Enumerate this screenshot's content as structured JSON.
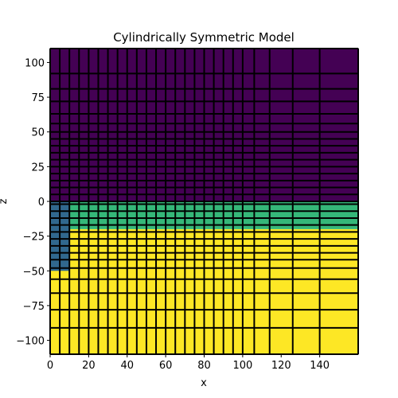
{
  "chart_data": {
    "type": "heatmap",
    "title": "Cylindrically Symmetric Model",
    "xlabel": "x",
    "ylabel": "z",
    "xlim": [
      0,
      160
    ],
    "ylim": [
      -110,
      110
    ],
    "x_ticks": [
      0,
      20,
      40,
      60,
      80,
      100,
      120,
      140
    ],
    "y_ticks": [
      -100,
      -75,
      -50,
      -25,
      0,
      25,
      50,
      75,
      100
    ],
    "grid_lines_shown": true,
    "grid_line_color": "#000000",
    "colormap": "viridis",
    "x_cell_edges": [
      0,
      5,
      10,
      15,
      20,
      25,
      30,
      35,
      40,
      45,
      50,
      55,
      60,
      65,
      70,
      75,
      80,
      85,
      90,
      95,
      100,
      106,
      114,
      126,
      140,
      160
    ],
    "z_cell_edges": [
      -110,
      -91,
      -78,
      -66,
      -56,
      -48,
      -42,
      -37,
      -32,
      -27,
      -22,
      -17,
      -12,
      -7,
      -2,
      0,
      5,
      10,
      15,
      20,
      25,
      30,
      35,
      40,
      45,
      50,
      56,
      63,
      72,
      81,
      92,
      110
    ],
    "regions": [
      {
        "description": "z above 0",
        "x_range": [
          0,
          160
        ],
        "z_range": [
          0,
          110
        ],
        "value": 0,
        "color": "#440154"
      },
      {
        "description": "layer between 0 and -20",
        "x_range": [
          0,
          160
        ],
        "z_range": [
          -20,
          0
        ],
        "value": 2,
        "color": "#35b779"
      },
      {
        "description": "column near axis",
        "x_range": [
          0,
          10
        ],
        "z_range": [
          -50,
          0
        ],
        "value": 1,
        "color": "#31688e"
      },
      {
        "description": "z below -20",
        "x_range": [
          0,
          160
        ],
        "z_range": [
          -110,
          -20
        ],
        "value": 3,
        "color": "#fde725"
      }
    ]
  }
}
